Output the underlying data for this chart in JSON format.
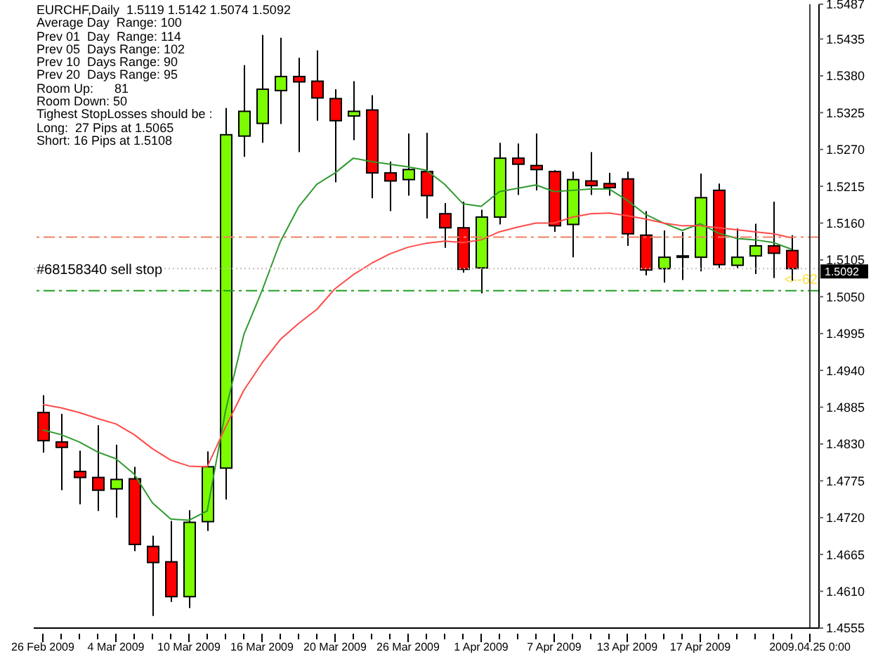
{
  "chart_data": {
    "type": "candlestick",
    "title": "EURCHF,Daily  1.5119 1.5142 1.5074 1.5092",
    "categories": [
      "26 Feb 2009",
      null,
      null,
      null,
      "4 Mar 2009",
      null,
      null,
      null,
      "10 Mar 2009",
      null,
      null,
      null,
      "16 Mar 2009",
      null,
      null,
      null,
      "20 Mar 2009",
      null,
      null,
      null,
      "26 Mar 2009",
      null,
      null,
      null,
      "1 Apr 2009",
      null,
      null,
      null,
      "7 Apr 2009",
      null,
      null,
      null,
      "13 Apr 2009",
      null,
      null,
      null,
      "17 Apr 2009",
      null,
      null,
      null,
      null,
      null,
      "2009.04.25 0:00"
    ],
    "ohlc": [
      [
        1.4877,
        1.4903,
        1.4817,
        1.4835
      ],
      [
        1.4833,
        1.4875,
        1.4761,
        1.4825
      ],
      [
        1.4789,
        1.482,
        1.474,
        1.478
      ],
      [
        1.478,
        1.4858,
        1.473,
        1.4761
      ],
      [
        1.4763,
        1.4829,
        1.472,
        1.4777
      ],
      [
        1.4778,
        1.4796,
        1.467,
        1.468
      ],
      [
        1.4677,
        1.4693,
        1.4573,
        1.4653
      ],
      [
        1.4654,
        1.4715,
        1.4594,
        1.4602
      ],
      [
        1.4602,
        1.4731,
        1.4585,
        1.4713
      ],
      [
        1.4714,
        1.4819,
        1.47,
        1.4796
      ],
      [
        1.4794,
        1.5332,
        1.4747,
        1.5292
      ],
      [
        1.529,
        1.5396,
        1.5259,
        1.5327
      ],
      [
        1.5309,
        1.5441,
        1.528,
        1.536
      ],
      [
        1.5358,
        1.5437,
        1.5308,
        1.5379
      ],
      [
        1.5379,
        1.5407,
        1.5266,
        1.5371
      ],
      [
        1.5372,
        1.5418,
        1.5313,
        1.5347
      ],
      [
        1.5346,
        1.536,
        1.5221,
        1.5313
      ],
      [
        1.532,
        1.5372,
        1.5284,
        1.5327
      ],
      [
        1.5329,
        1.5351,
        1.5197,
        1.5235
      ],
      [
        1.5235,
        1.5252,
        1.5178,
        1.5223
      ],
      [
        1.5225,
        1.5294,
        1.5201,
        1.524
      ],
      [
        1.5237,
        1.5295,
        1.5167,
        1.5201
      ],
      [
        1.5174,
        1.519,
        1.5123,
        1.5153
      ],
      [
        1.5153,
        1.5192,
        1.5086,
        1.5091
      ],
      [
        1.5093,
        1.518,
        1.5055,
        1.5169
      ],
      [
        1.5169,
        1.528,
        1.5158,
        1.5257
      ],
      [
        1.5257,
        1.5279,
        1.5202,
        1.5248
      ],
      [
        1.5246,
        1.5294,
        1.5209,
        1.524
      ],
      [
        1.5237,
        1.5239,
        1.5147,
        1.5156
      ],
      [
        1.5158,
        1.5237,
        1.5109,
        1.5225
      ],
      [
        1.5223,
        1.5266,
        1.5202,
        1.5216
      ],
      [
        1.5219,
        1.5235,
        1.5201,
        1.5213
      ],
      [
        1.5226,
        1.5237,
        1.5126,
        1.5144
      ],
      [
        1.5142,
        1.5178,
        1.5082,
        1.509
      ],
      [
        1.5092,
        1.5149,
        1.5071,
        1.5109
      ],
      [
        1.5111,
        1.5147,
        1.5075,
        1.5111
      ],
      [
        1.5109,
        1.5234,
        1.5088,
        1.5198
      ],
      [
        1.5209,
        1.5219,
        1.5093,
        1.5098
      ],
      [
        1.5097,
        1.5152,
        1.5093,
        1.5109
      ],
      [
        1.5111,
        1.5159,
        1.5084,
        1.5126
      ],
      [
        1.5126,
        1.5192,
        1.5078,
        1.5115
      ],
      [
        1.5119,
        1.5142,
        1.5074,
        1.5092
      ],
      null
    ],
    "colors": [
      "#ff0000",
      "#ff0000",
      "#ff0000",
      "#ff0000",
      "#7cfc00",
      "#ff0000",
      "#ff0000",
      "#ff0000",
      "#7cfc00",
      "#7cfc00",
      "#7cfc00",
      "#7cfc00",
      "#7cfc00",
      "#7cfc00",
      "#ff0000",
      "#ff0000",
      "#ff0000",
      "#7cfc00",
      "#ff0000",
      "#ff0000",
      "#7cfc00",
      "#ff0000",
      "#ff0000",
      "#ff0000",
      "#7cfc00",
      "#7cfc00",
      "#ff0000",
      "#ff0000",
      "#ff0000",
      "#7cfc00",
      "#ff0000",
      "#ff0000",
      "#ff0000",
      "#ff0000",
      "#7cfc00",
      "#000000",
      "#7cfc00",
      "#ff0000",
      "#7cfc00",
      "#7cfc00",
      "#ff0000",
      "#ff0000",
      null
    ],
    "series": [
      {
        "type": "line",
        "color": "#2e9b2e",
        "values": [
          1.4851,
          1.4844,
          1.4833,
          1.4818,
          1.4808,
          1.4785,
          1.4742,
          1.4718,
          1.4716,
          1.473,
          1.4879,
          1.4993,
          1.5059,
          1.5132,
          1.5184,
          1.5218,
          1.5235,
          1.5257,
          1.5252,
          1.5248,
          1.5244,
          1.5239,
          1.5218,
          1.5189,
          1.5185,
          1.5207,
          1.5212,
          1.5217,
          1.5207,
          1.5209,
          1.5211,
          1.5211,
          1.5194,
          1.5173,
          1.516,
          1.5149,
          1.5159,
          1.5145,
          1.5137,
          1.5135,
          1.5131,
          1.5121,
          null
        ]
      },
      {
        "type": "line",
        "color": "#ff4a4a",
        "values": [
          1.4889,
          1.4884,
          1.4877,
          1.4868,
          1.486,
          1.4844,
          1.4823,
          1.4806,
          1.4797,
          1.4796,
          1.4855,
          1.491,
          1.4951,
          1.4986,
          1.501,
          1.5031,
          1.5062,
          1.5083,
          1.51,
          1.5114,
          1.5124,
          1.513,
          1.5133,
          1.5131,
          1.5135,
          1.5147,
          1.5154,
          1.516,
          1.516,
          1.5169,
          1.5174,
          1.5175,
          1.5171,
          1.5166,
          1.516,
          1.5156,
          1.5156,
          1.5153,
          1.515,
          1.5147,
          1.5144,
          1.5138,
          null
        ]
      }
    ],
    "ylim": [
      1.4555,
      1.5487
    ],
    "yticks": [
      1.4555,
      {
        "value": 1.461,
        "label": "1.4610"
      },
      1.4665,
      {
        "value": 1.472,
        "label": "1.4720"
      },
      1.4775,
      {
        "value": 1.483,
        "label": "1.4830"
      },
      1.4885,
      {
        "value": 1.494,
        "label": "1.4940"
      },
      1.4995,
      {
        "value": 1.505,
        "label": "1.5050"
      },
      1.5105,
      {
        "value": 1.516,
        "label": "1.5160"
      },
      1.5215,
      {
        "value": 1.527,
        "label": "1.5270"
      },
      1.5325,
      {
        "value": 1.538,
        "label": "1.5380"
      },
      1.5435,
      1.5487
    ],
    "ref_lines": [
      {
        "axis": "y",
        "value": 1.5139,
        "color": "#f08060",
        "line_style": "dashed"
      },
      {
        "axis": "y",
        "value": 1.5092,
        "label": "1.5092",
        "color": "#c8c0b8",
        "line_style": "dotted"
      },
      {
        "axis": "y",
        "value": 1.5059,
        "label": "#68158340 sell stop",
        "color": "#20a020",
        "line_style": "dashed"
      },
      {
        "axis": "x",
        "value": "2009.04.25 0:00",
        "color": "#404040",
        "line_style": "solid"
      }
    ],
    "annotations": [
      "Average Day  Range: 100",
      "Prev 01  Day  Range: 114",
      "Prev 05  Days Range: 102",
      "Prev 10  Days Range: 90",
      "Prev 20  Days Range: 95",
      "Room Up:      81",
      "Room Down: 50",
      "Tighest StopLosses should be :",
      "Long:  27 Pips at 1.5065",
      "Short: 16 Pips at 1.5108",
      "<--62"
    ]
  }
}
